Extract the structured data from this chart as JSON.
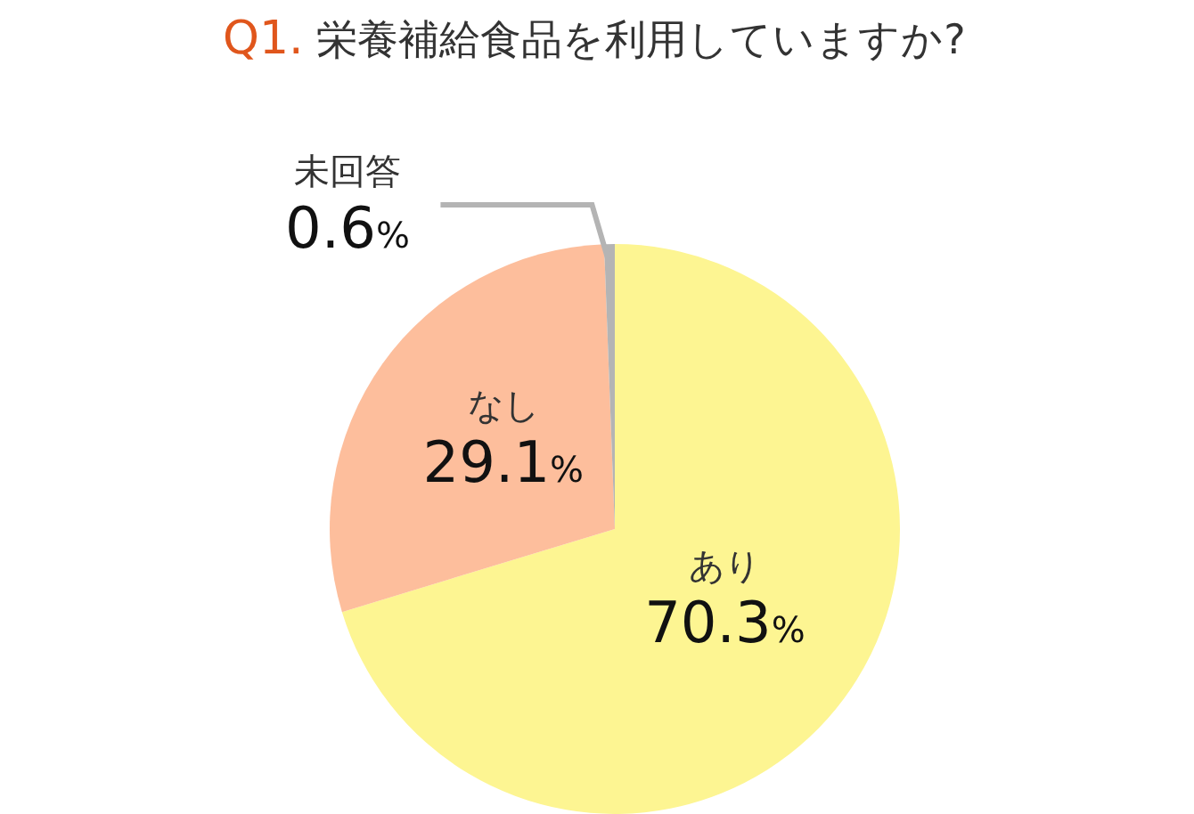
{
  "chart_data": {
    "type": "pie",
    "title": "Q1. 栄養補給食品を利用していますか?",
    "categories": [
      "あり",
      "なし",
      "未回答"
    ],
    "values": [
      70.3,
      29.1,
      0.6
    ],
    "value_labels": [
      "70.3%",
      "29.1%",
      "0.6%"
    ],
    "colors": [
      "#fdf592",
      "#fdbe9c",
      "#b4b4b4"
    ]
  }
}
